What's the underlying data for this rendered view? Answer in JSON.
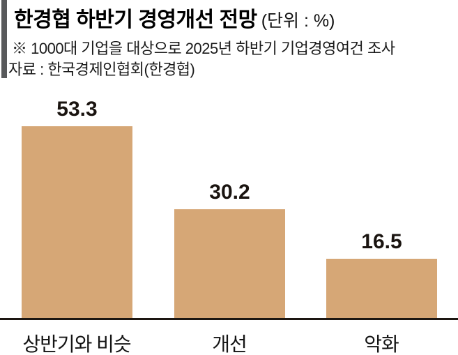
{
  "header": {
    "title": "한경협 하반기 경영개선 전망",
    "unit_label": "(단위 : %)",
    "note": "※ 1000대 기업을 대상으로 2025년 하반기 기업경영여건 조사",
    "source": "자료 : 한국경제인협회(한경협)"
  },
  "colors": {
    "bar": "#d6a776",
    "accent_bar": "#58595b",
    "axis": "#1d1712",
    "text": "#000000"
  },
  "chart_data": {
    "type": "bar",
    "title": "한경협 하반기 경영개선 전망",
    "unit": "%",
    "categories": [
      "상반기와 비슷",
      "개선",
      "악화"
    ],
    "values": [
      53.3,
      30.2,
      16.5
    ],
    "value_labels": [
      "53.3",
      "30.2",
      "16.5"
    ],
    "ylim": [
      0,
      60
    ],
    "grid": false,
    "legend": false,
    "orientation": "vertical",
    "value_label_position": "above-bar"
  }
}
